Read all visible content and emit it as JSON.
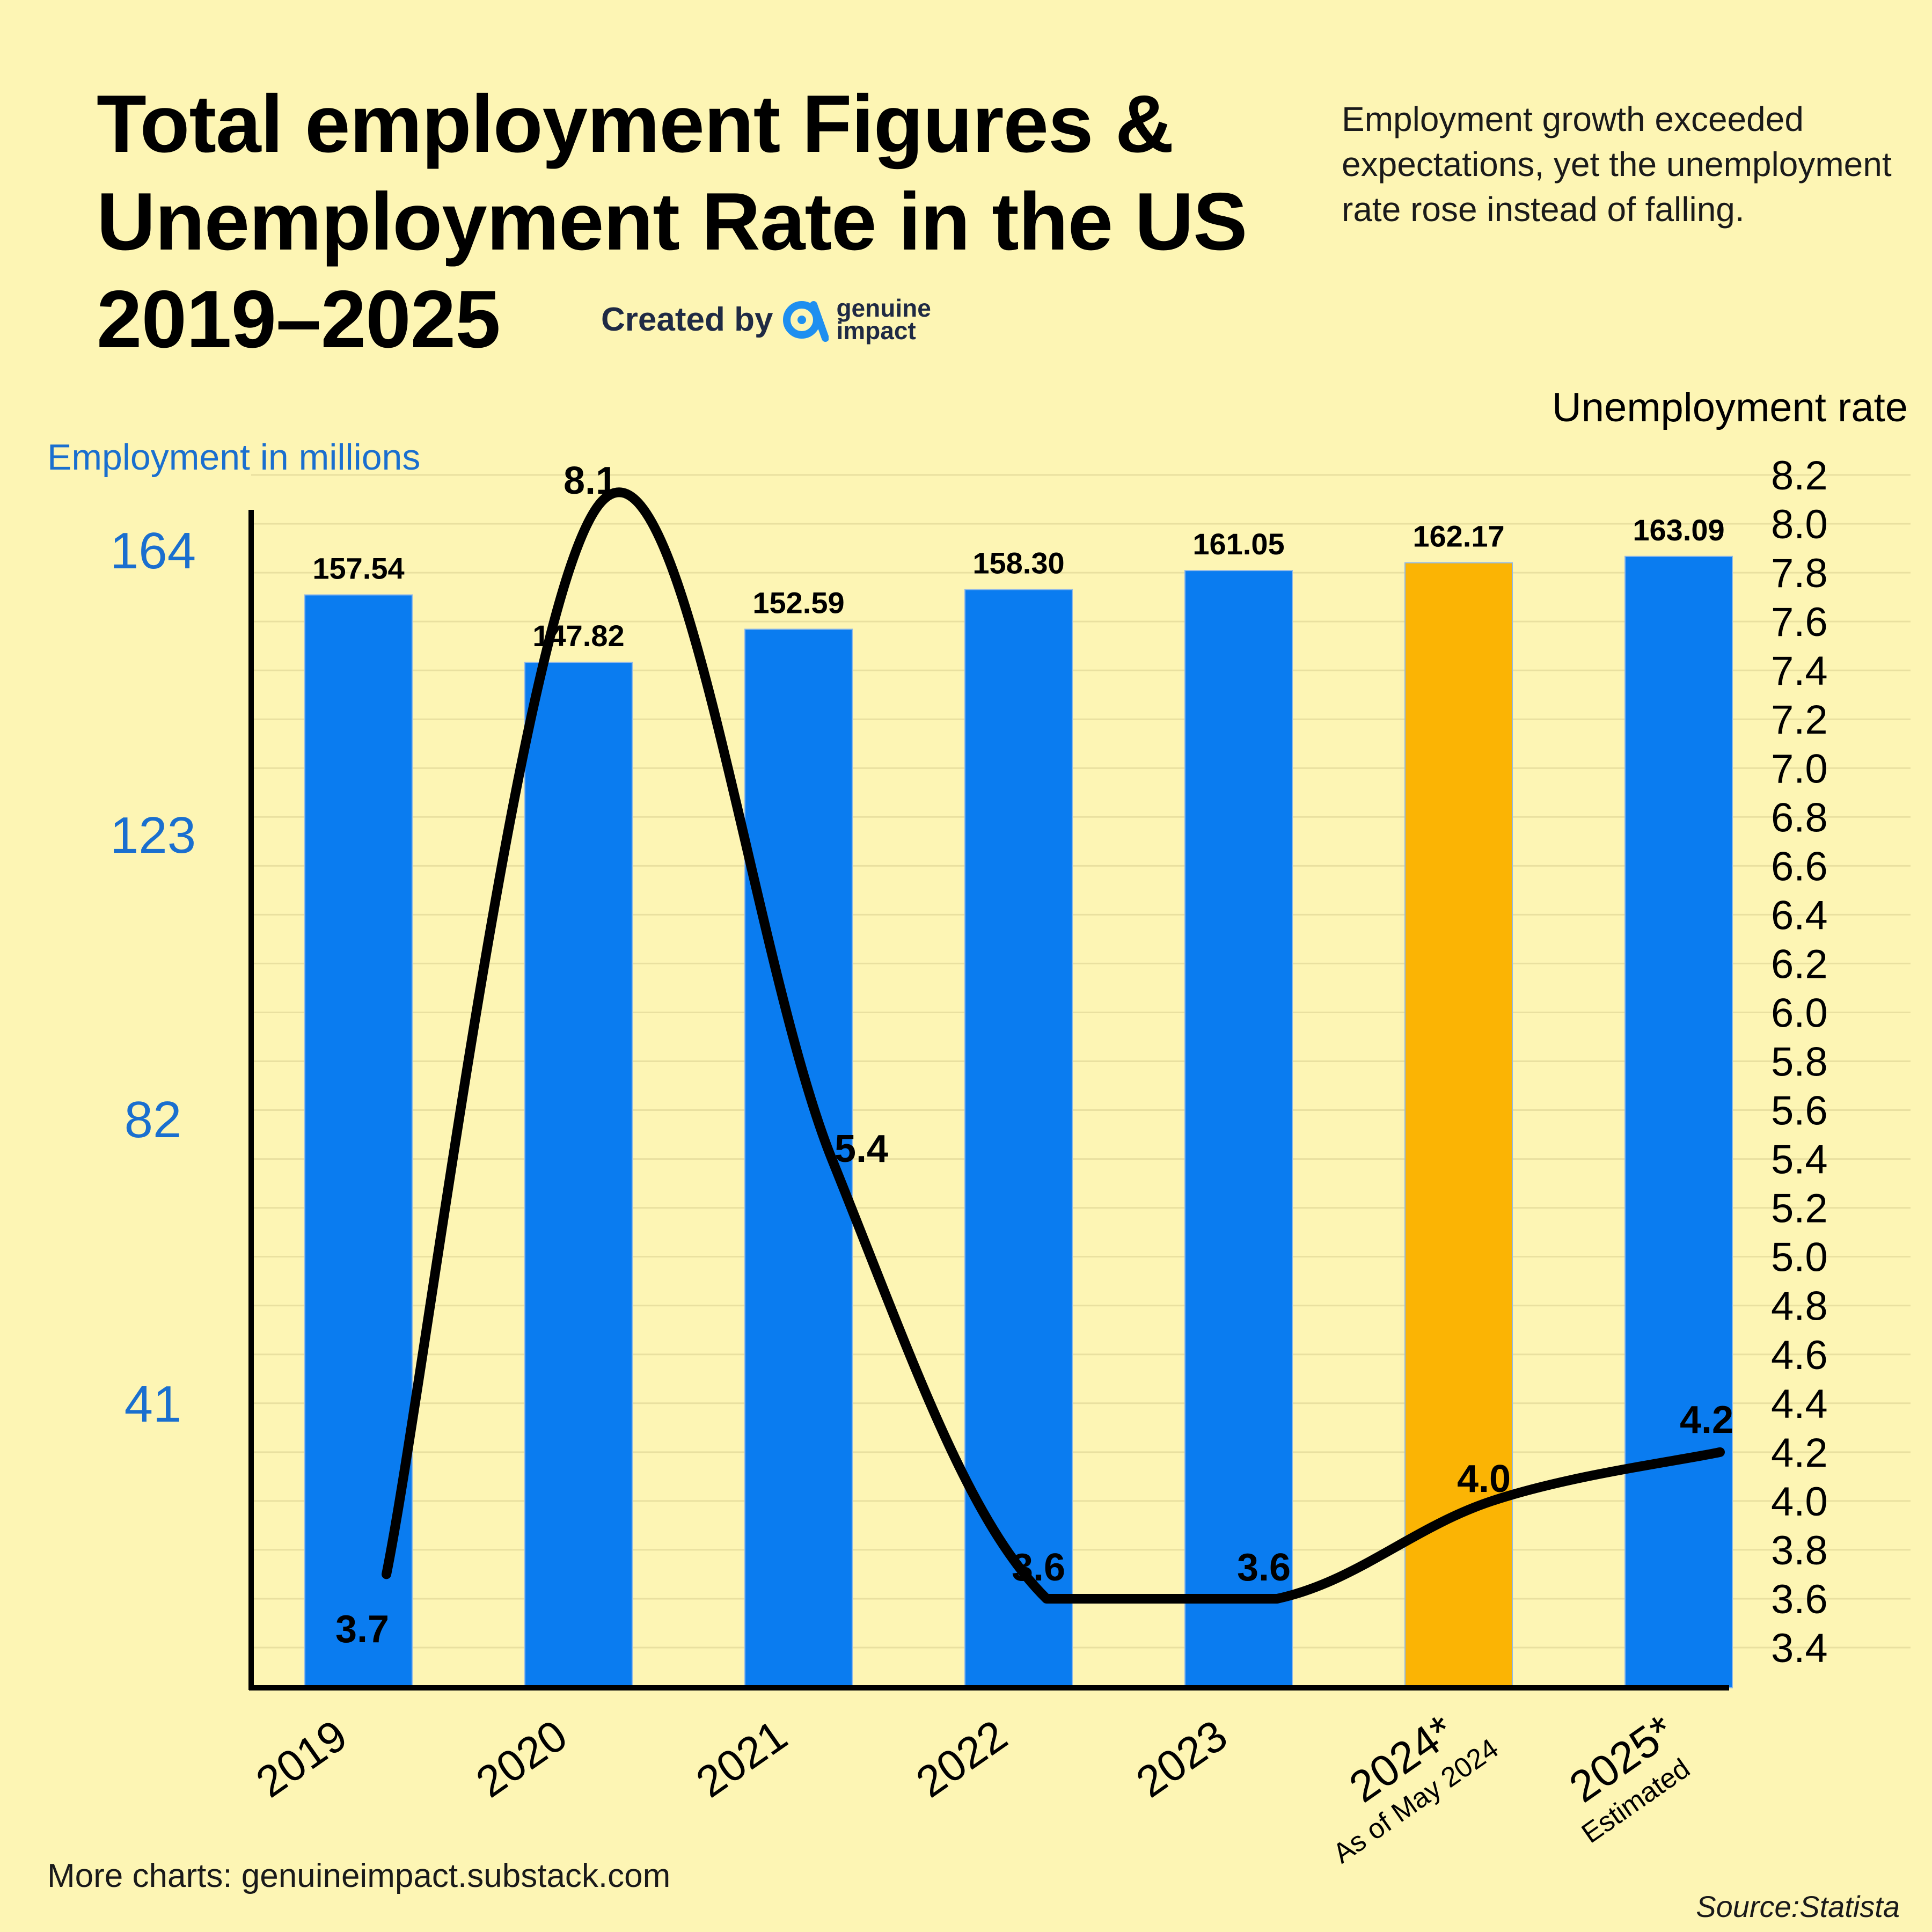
{
  "title": "Total employment Figures &\nUnemployment Rate in the US\n2019–2025",
  "subtitle": "Employment growth exceeded expectations, yet the unemployment rate rose instead of falling.",
  "credit": {
    "label": "Created by",
    "brand_line1": "genuine",
    "brand_line2": "impact"
  },
  "footer": {
    "more_charts": "More charts: genuineimpact.substack.com",
    "source": "Source:Statista"
  },
  "colors": {
    "background": "#fdf5b4",
    "bar": "#0a7cf0",
    "bar_highlight": "#fbb404",
    "line": "#000000",
    "left_axis_text": "#1a6fcf",
    "grid": "#e9e0a0"
  },
  "chart_data": {
    "type": "bar",
    "categories": [
      "2019",
      "2020",
      "2021",
      "2022",
      "2023",
      "2024*",
      "2025*"
    ],
    "category_notes": [
      "",
      "",
      "",
      "",
      "",
      "As of May 2024",
      "Estimated"
    ],
    "series": [
      {
        "type": "bar",
        "axis": "left",
        "values": [
          157.54,
          147.82,
          152.59,
          158.3,
          161.05,
          162.17,
          163.09
        ],
        "labels": [
          "157.54",
          "147.82",
          "152.59",
          "158.30",
          "161.05",
          "162.17",
          "163.09"
        ],
        "highlight_index": 5
      },
      {
        "type": "line",
        "axis": "right",
        "smooth": true,
        "values": [
          3.7,
          8.1,
          5.4,
          3.6,
          3.6,
          4.0,
          4.2
        ],
        "labels": [
          "3.7",
          "8.1",
          "5.4",
          "3.6",
          "3.6",
          "4.0",
          "4.2"
        ]
      }
    ],
    "ylabel": "Employment in millions",
    "y2label": "Unemployment rate",
    "ylim": [
      0,
      164
    ],
    "yticks": [
      "41",
      "82",
      "123",
      "164"
    ],
    "y2lim": [
      3.4,
      8.2
    ],
    "y2ticks": [
      "3.4",
      "3.6",
      "3.8",
      "4.0",
      "4.2",
      "4.4",
      "4.6",
      "4.8",
      "5.0",
      "5.2",
      "5.4",
      "5.6",
      "5.8",
      "6.0",
      "6.2",
      "6.4",
      "6.6",
      "6.8",
      "7.0",
      "7.2",
      "7.4",
      "7.6",
      "7.8",
      "8.0",
      "8.2"
    ],
    "grid": true
  }
}
